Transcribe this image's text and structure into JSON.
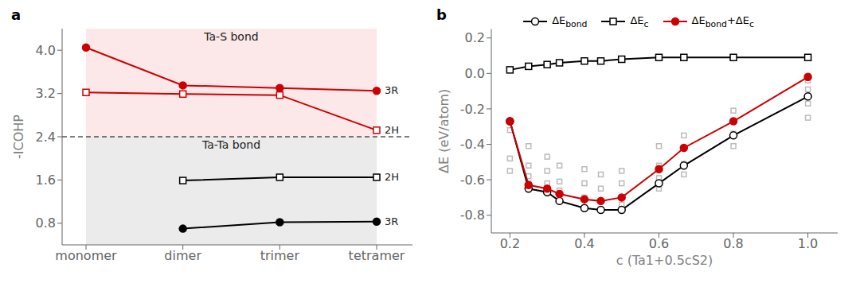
{
  "chart_data": [
    {
      "type": "line",
      "panel_label": "a",
      "categories": [
        "monomer",
        "dimer",
        "trimer",
        "tetramer"
      ],
      "ylabel": "-ICOHP",
      "ylim": [
        0.4,
        4.4
      ],
      "yticks": [
        0.8,
        1.6,
        2.4,
        3.2,
        {
          "value": 4,
          "label": "4.0"
        }
      ],
      "grid": false,
      "bands": [
        {
          "from": 2.4,
          "to": 4.4,
          "color": "#fce4e4",
          "label": "Ta-S bond"
        },
        {
          "from": 0.4,
          "to": 2.4,
          "color": "#e8e8e8",
          "label": "Ta-Ta bond"
        }
      ],
      "reference_line": {
        "y": 2.4,
        "color": "black",
        "line_style": "dashed"
      },
      "series": [
        {
          "name": "3R",
          "color": "#cc0000",
          "marker": "circle",
          "values": [
            4.05,
            3.35,
            3.3,
            3.25
          ]
        },
        {
          "name": "2H",
          "color": "#cc0000",
          "marker": "open_square",
          "values": [
            3.22,
            3.19,
            3.17,
            2.52
          ]
        },
        {
          "name": "2H",
          "color": "black",
          "marker": "open_square",
          "values": [
            null,
            1.59,
            1.65,
            1.65
          ]
        },
        {
          "name": "3R",
          "color": "black",
          "marker": "circle",
          "values": [
            null,
            0.7,
            0.82,
            0.83
          ]
        }
      ]
    },
    {
      "type": "line",
      "panel_label": "b",
      "ylabel": "ΔE (eV/atom)",
      "xlabel": "c (Ta1+0.5cS2)",
      "x": [
        0.2,
        0.25,
        0.3,
        0.333,
        0.4,
        0.444,
        0.5,
        0.6,
        0.667,
        0.8,
        1.0
      ],
      "xlim": [
        0.15,
        1.08
      ],
      "xticks": [
        0.2,
        0.4,
        0.6,
        0.8,
        {
          "value": 1,
          "label": "1.0"
        }
      ],
      "ylim": [
        -0.9,
        0.25
      ],
      "yticks": [
        0.2,
        {
          "value": 0,
          "label": "0.0"
        },
        -0.2,
        -0.4,
        -0.6,
        -0.8
      ],
      "grid": false,
      "legend": "top",
      "series": [
        {
          "type": "scatter",
          "color": "#bbbbbb",
          "marker": "open_square",
          "x": [
            0.2,
            0.2,
            0.2,
            0.25,
            0.25,
            0.25,
            0.25,
            0.3,
            0.3,
            0.3,
            0.3,
            0.333,
            0.333,
            0.333,
            0.4,
            0.4,
            0.4,
            0.4,
            0.444,
            0.444,
            0.444,
            0.5,
            0.5,
            0.5,
            0.5,
            0.5,
            0.6,
            0.6,
            0.6,
            0.6,
            0.667,
            0.667,
            0.667,
            0.667,
            0.8,
            0.8,
            0.8,
            0.8,
            1.0,
            1.0,
            1.0,
            1.0
          ],
          "values": [
            -0.32,
            -0.48,
            -0.55,
            -0.41,
            -0.52,
            -0.58,
            -0.62,
            -0.47,
            -0.55,
            -0.62,
            -0.67,
            -0.52,
            -0.61,
            -0.66,
            -0.54,
            -0.62,
            -0.7,
            -0.76,
            -0.57,
            -0.65,
            -0.72,
            -0.55,
            -0.62,
            -0.7,
            -0.74,
            -0.77,
            -0.41,
            -0.52,
            -0.59,
            -0.65,
            -0.35,
            -0.42,
            -0.51,
            -0.57,
            -0.21,
            -0.27,
            -0.34,
            -0.41,
            -0.04,
            -0.09,
            -0.17,
            -0.25
          ]
        },
        {
          "name": "ΔEbond",
          "color": "black",
          "marker": "open_circle",
          "values": [
            -0.27,
            -0.65,
            -0.67,
            -0.72,
            -0.76,
            -0.77,
            -0.77,
            -0.62,
            -0.52,
            -0.35,
            -0.13
          ]
        },
        {
          "name": "ΔEc",
          "color": "black",
          "marker": "open_square",
          "values": [
            0.02,
            0.04,
            0.05,
            0.06,
            0.07,
            0.07,
            0.08,
            0.09,
            0.09,
            0.09,
            0.09
          ]
        },
        {
          "name": "ΔEbond+ΔEc",
          "color": "#cc0000",
          "marker": "circle",
          "values": [
            -0.27,
            -0.63,
            -0.65,
            -0.68,
            -0.71,
            -0.72,
            -0.7,
            -0.54,
            -0.42,
            -0.27,
            -0.02
          ]
        }
      ]
    }
  ]
}
